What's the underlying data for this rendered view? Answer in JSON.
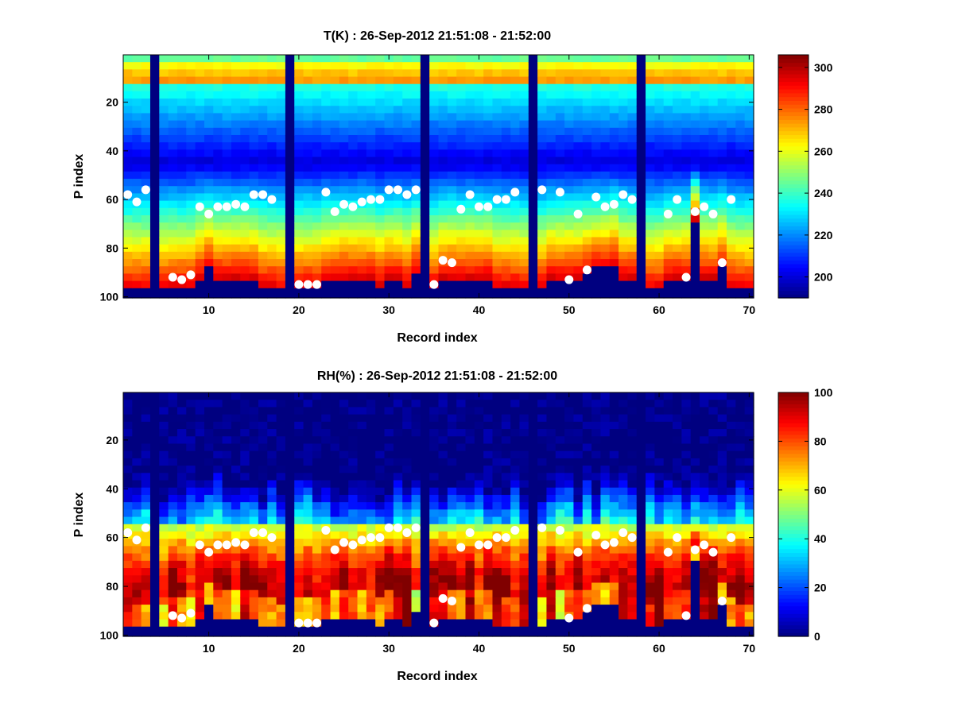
{
  "chart_data": [
    {
      "type": "heatmap",
      "title": "T(K) : 26-Sep-2012 21:51:08 - 21:52:00",
      "xlabel": "Record index",
      "ylabel": "P index",
      "xlim": [
        1,
        70
      ],
      "ylim": [
        100,
        1
      ],
      "x_ticks": [
        "10",
        "20",
        "30",
        "40",
        "50",
        "60",
        "70"
      ],
      "y_ticks": [
        "20",
        "40",
        "60",
        "80",
        "100"
      ],
      "colorbar": {
        "min": 190,
        "max": 306,
        "ticks": [
          "200",
          "220",
          "240",
          "260",
          "280",
          "300"
        ],
        "colormap": "jet"
      },
      "profile_bottom": [
        97,
        97,
        97,
        0,
        97,
        96,
        96,
        96,
        92,
        88,
        92,
        92,
        92,
        92,
        92,
        96,
        96,
        97,
        0,
        96,
        96,
        96,
        93,
        92,
        92,
        92,
        92,
        92,
        95,
        92,
        92,
        95,
        90,
        0,
        96,
        92,
        92,
        92,
        92,
        92,
        92,
        96,
        96,
        96,
        97,
        0,
        96,
        92,
        92,
        92,
        92,
        90,
        88,
        88,
        86,
        92,
        92,
        0,
        97,
        97,
        92,
        92,
        92,
        68,
        92,
        92,
        88,
        96,
        97,
        97
      ],
      "surface_layer": {
        "top_mean": 11,
        "peak_layer": 10
      },
      "blank_columns": [
        4.5,
        18.5,
        33.5,
        45.5,
        57.5
      ],
      "markers": {
        "x": [
          1,
          2,
          3,
          6,
          7,
          8,
          9,
          10,
          11,
          12,
          13,
          14,
          15,
          16,
          17,
          20,
          21,
          22,
          23,
          24,
          25,
          26,
          27,
          28,
          29,
          30,
          31,
          32,
          33,
          35,
          36,
          37,
          38,
          39,
          40,
          41,
          42,
          43,
          44,
          47,
          49,
          50,
          51,
          52,
          53,
          54,
          55,
          56,
          57,
          61,
          62,
          63,
          64,
          65,
          66,
          67,
          68
        ],
        "y": [
          58,
          61,
          56,
          92,
          93,
          91,
          63,
          66,
          63,
          63,
          62,
          63,
          58,
          58,
          60,
          95,
          95,
          95,
          57,
          65,
          62,
          63,
          61,
          60,
          60,
          56,
          56,
          58,
          56,
          95,
          85,
          86,
          64,
          58,
          63,
          63,
          60,
          60,
          57,
          56,
          57,
          93,
          66,
          89,
          59,
          63,
          62,
          58,
          60,
          66,
          60,
          92,
          65,
          63,
          66,
          86,
          60
        ]
      }
    },
    {
      "type": "heatmap",
      "title": "RH(%) : 26-Sep-2012 21:51:08 - 21:52:00",
      "xlabel": "Record index",
      "ylabel": "P index",
      "xlim": [
        1,
        70
      ],
      "ylim": [
        100,
        1
      ],
      "x_ticks": [
        "10",
        "20",
        "30",
        "40",
        "50",
        "60",
        "70"
      ],
      "y_ticks": [
        "20",
        "40",
        "60",
        "80",
        "100"
      ],
      "colorbar": {
        "min": 0,
        "max": 100,
        "ticks": [
          "0",
          "20",
          "40",
          "60",
          "80",
          "100"
        ],
        "colormap": "jet"
      },
      "profile_bottom": [
        97,
        97,
        97,
        0,
        97,
        96,
        96,
        96,
        92,
        88,
        92,
        92,
        92,
        92,
        92,
        96,
        96,
        97,
        0,
        96,
        96,
        96,
        93,
        92,
        92,
        92,
        92,
        92,
        95,
        92,
        92,
        95,
        90,
        0,
        96,
        92,
        92,
        92,
        92,
        92,
        92,
        96,
        96,
        96,
        97,
        0,
        96,
        92,
        92,
        92,
        92,
        90,
        88,
        88,
        86,
        92,
        92,
        0,
        97,
        97,
        92,
        92,
        92,
        68,
        92,
        92,
        88,
        96,
        97,
        97
      ],
      "moist_layer_top": 55,
      "blank_columns": [
        4.5,
        18.5,
        33.5,
        45.5,
        57.5
      ],
      "markers": {
        "x": [
          1,
          2,
          3,
          6,
          7,
          8,
          9,
          10,
          11,
          12,
          13,
          14,
          15,
          16,
          17,
          20,
          21,
          22,
          23,
          24,
          25,
          26,
          27,
          28,
          29,
          30,
          31,
          32,
          33,
          35,
          36,
          37,
          38,
          39,
          40,
          41,
          42,
          43,
          44,
          47,
          49,
          50,
          51,
          52,
          53,
          54,
          55,
          56,
          57,
          61,
          62,
          63,
          64,
          65,
          66,
          67,
          68
        ],
        "y": [
          58,
          61,
          56,
          92,
          93,
          91,
          63,
          66,
          63,
          63,
          62,
          63,
          58,
          58,
          60,
          95,
          95,
          95,
          57,
          65,
          62,
          63,
          61,
          60,
          60,
          56,
          56,
          58,
          56,
          95,
          85,
          86,
          64,
          58,
          63,
          63,
          60,
          60,
          57,
          56,
          57,
          93,
          66,
          89,
          59,
          63,
          62,
          58,
          60,
          66,
          60,
          92,
          65,
          63,
          66,
          86,
          60
        ]
      }
    }
  ]
}
